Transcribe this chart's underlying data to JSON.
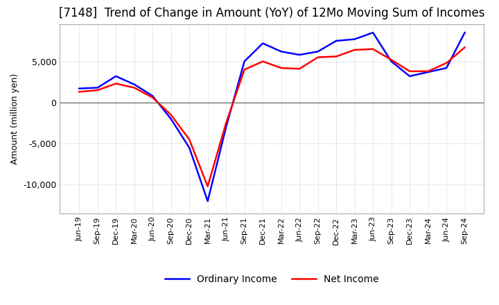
{
  "title": "[7148]  Trend of Change in Amount (YoY) of 12Mo Moving Sum of Incomes",
  "ylabel": "Amount (million yen)",
  "x_labels": [
    "Jun-19",
    "Sep-19",
    "Dec-19",
    "Mar-20",
    "Jun-20",
    "Sep-20",
    "Dec-20",
    "Mar-21",
    "Jun-21",
    "Sep-21",
    "Dec-21",
    "Mar-22",
    "Jun-22",
    "Sep-22",
    "Dec-22",
    "Mar-23",
    "Jun-23",
    "Sep-23",
    "Dec-23",
    "Mar-24",
    "Jun-24",
    "Sep-24"
  ],
  "ordinary_income": [
    1700,
    1800,
    3200,
    2200,
    800,
    -2000,
    -5500,
    -12000,
    -3000,
    5000,
    7200,
    6200,
    5800,
    6200,
    7500,
    7700,
    8500,
    5000,
    3200,
    3700,
    4200,
    8500
  ],
  "net_income": [
    1300,
    1500,
    2300,
    1800,
    600,
    -1500,
    -4500,
    -10200,
    -2500,
    4000,
    5000,
    4200,
    4100,
    5500,
    5600,
    6400,
    6500,
    5200,
    3800,
    3800,
    4800,
    6700
  ],
  "ordinary_income_color": "#0000FF",
  "net_income_color": "#FF0000",
  "ylim": [
    -13500,
    9500
  ],
  "yticks": [
    -10000,
    -5000,
    0,
    5000
  ],
  "background_color": "#FFFFFF",
  "grid_color": "#AAAAAA",
  "title_fontsize": 12,
  "legend_labels": [
    "Ordinary Income",
    "Net Income"
  ]
}
